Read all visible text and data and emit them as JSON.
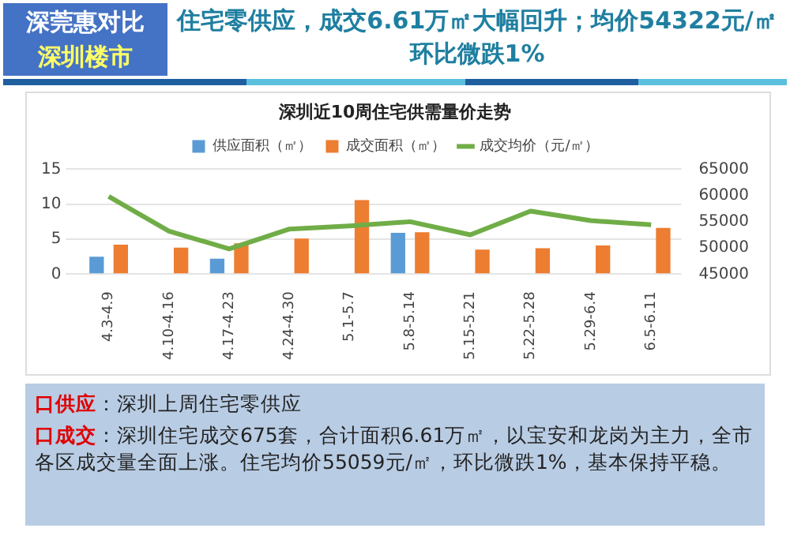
{
  "chart_data": {
    "type": "bar",
    "title": "深圳近10周住宅供需量价走势",
    "categories": [
      "4.3-4.9",
      "4.10-4.16",
      "4.17-4.23",
      "4.24-4.30",
      "5.1-5.7",
      "5.8-5.14",
      "5.15-5.21",
      "5.22-5.28",
      "5.29-6.4",
      "6.5-6.11"
    ],
    "series": [
      {
        "name": "供应面积（㎡）",
        "color": "#5b9bd5",
        "values": [
          2.5,
          0,
          2.2,
          0,
          0,
          5.9,
          0,
          0,
          0,
          0
        ]
      },
      {
        "name": "成交面积（㎡）",
        "color": "#ed7d31",
        "values": [
          4.2,
          3.8,
          4.4,
          5.1,
          10.6,
          6.0,
          3.5,
          3.7,
          4.1,
          6.6
        ]
      },
      {
        "name": "成交均价（元/㎡）",
        "type": "line",
        "axis": "y2",
        "color": "#70ad47",
        "values": [
          59800,
          53200,
          49800,
          53600,
          54200,
          55000,
          52500,
          57000,
          55200,
          54400
        ]
      }
    ],
    "ylim": [
      0,
      15
    ],
    "yticks": [
      0,
      5,
      10,
      15
    ],
    "y2lim": [
      45000,
      65000
    ],
    "y2ticks": [
      45000,
      50000,
      55000,
      60000,
      65000
    ],
    "grid": "y",
    "legend": "top",
    "marker": "none",
    "line_style": "solid",
    "annotations": [
      "深莞惠对比",
      "深圳楼市",
      "住宅零供应，成交6.61万㎡大幅回升；均价54322元/㎡环比微跌1%",
      "口供应",
      "：深圳上周住宅零供应",
      "口成交",
      "：深圳住宅成交675套，合计面积6.61万㎡，以宝安和龙岗为主力，全市各区成交量全面上涨。住宅均价55059元/㎡，环比微跌1%，基本保持平稳。"
    ]
  }
}
